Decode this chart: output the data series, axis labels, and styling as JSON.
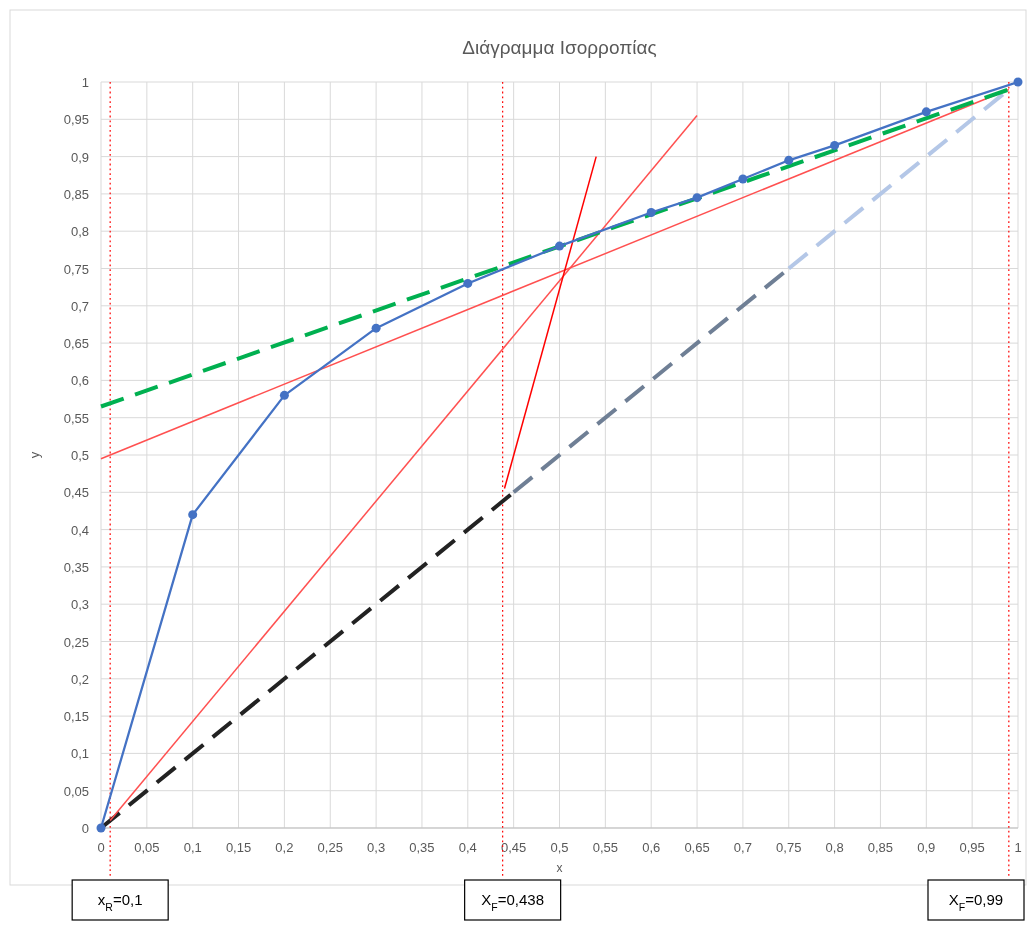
{
  "chart_data": {
    "type": "line",
    "title": "Διάγραμμα Ισορροπίας",
    "xlabel": "x",
    "ylabel": "y",
    "xlim": [
      0,
      1
    ],
    "ylim": [
      0,
      1
    ],
    "xticks": [
      0,
      {
        "value": 0.05,
        "label": "0,05"
      },
      {
        "value": 0.1,
        "label": "0,1"
      },
      {
        "value": 0.15,
        "label": "0,15"
      },
      {
        "value": 0.2,
        "label": "0,2"
      },
      {
        "value": 0.25,
        "label": "0,25"
      },
      {
        "value": 0.3,
        "label": "0,3"
      },
      {
        "value": 0.35,
        "label": "0,35"
      },
      {
        "value": 0.4,
        "label": "0,4"
      },
      {
        "value": 0.45,
        "label": "0,45"
      },
      {
        "value": 0.5,
        "label": "0,5"
      },
      {
        "value": 0.55,
        "label": "0,55"
      },
      {
        "value": 0.6,
        "label": "0,6"
      },
      {
        "value": 0.65,
        "label": "0,65"
      },
      {
        "value": 0.7,
        "label": "0,7"
      },
      {
        "value": 0.75,
        "label": "0,75"
      },
      {
        "value": 0.8,
        "label": "0,8"
      },
      {
        "value": 0.85,
        "label": "0,85"
      },
      {
        "value": 0.9,
        "label": "0,9"
      },
      {
        "value": 0.95,
        "label": "0,95"
      },
      1
    ],
    "yticks": [
      0,
      {
        "value": 0.05,
        "label": "0,05"
      },
      {
        "value": 0.1,
        "label": "0,1"
      },
      {
        "value": 0.15,
        "label": "0,15"
      },
      {
        "value": 0.2,
        "label": "0,2"
      },
      {
        "value": 0.25,
        "label": "0,25"
      },
      {
        "value": 0.3,
        "label": "0,3"
      },
      {
        "value": 0.35,
        "label": "0,35"
      },
      {
        "value": 0.4,
        "label": "0,4"
      },
      {
        "value": 0.45,
        "label": "0,45"
      },
      {
        "value": 0.5,
        "label": "0,5"
      },
      {
        "value": 0.55,
        "label": "0,55"
      },
      {
        "value": 0.6,
        "label": "0,6"
      },
      {
        "value": 0.65,
        "label": "0,65"
      },
      {
        "value": 0.7,
        "label": "0,7"
      },
      {
        "value": 0.75,
        "label": "0,75"
      },
      {
        "value": 0.8,
        "label": "0,8"
      },
      {
        "value": 0.85,
        "label": "0,85"
      },
      {
        "value": 0.9,
        "label": "0,9"
      },
      {
        "value": 0.95,
        "label": "0,95"
      },
      1
    ],
    "grid": true,
    "annotations": [
      "x$_{R}$=0,1",
      "X$_{F}$=0,438",
      "X$_{F}$=0,99"
    ],
    "series": [
      {
        "color": "#222222",
        "x": [
          0,
          0.45
        ],
        "values": [
          0,
          0.45
        ],
        "line_style": "dashed",
        "marker": "none"
      },
      {
        "color": "#6f7f95",
        "x": [
          0.45,
          0.75
        ],
        "values": [
          0.45,
          0.75
        ],
        "line_style": "dashed",
        "marker": "none"
      },
      {
        "color": "#b4c7e7",
        "x": [
          0.75,
          0.99
        ],
        "values": [
          0.75,
          0.99
        ],
        "line_style": "dashed",
        "marker": "none"
      },
      {
        "color": "#ff5050",
        "x": [
          0,
          0.99
        ],
        "values": [
          0.495,
          0.99
        ],
        "line_style": "solid",
        "marker": "none"
      },
      {
        "color": "#ff5050",
        "x": [
          0.01,
          0.65
        ],
        "values": [
          0.01,
          0.955
        ],
        "line_style": "solid",
        "marker": "none"
      },
      {
        "color": "#00b050",
        "x": [
          0,
          0.99
        ],
        "values": [
          0.565,
          0.99
        ],
        "line_style": "dashed",
        "marker": "none"
      },
      {
        "color": "#ff0000",
        "x": [
          0.44,
          0.54
        ],
        "values": [
          0.455,
          0.9
        ],
        "line_style": "solid",
        "marker": "none"
      },
      {
        "color": "#4472c4",
        "x": [
          0,
          0.1,
          0.2,
          0.3,
          0.4,
          0.5,
          0.6,
          0.65,
          0.7,
          0.75,
          0.8,
          0.9,
          1
        ],
        "values": [
          0,
          0.42,
          0.58,
          0.67,
          0.73,
          0.78,
          0.825,
          0.845,
          0.87,
          0.895,
          0.915,
          0.96,
          1
        ],
        "line_style": "solid",
        "marker": "circle"
      }
    ],
    "ref_lines": [
      {
        "axis": "x",
        "value": 0.01,
        "color": "#ff0000",
        "line_style": "dotted"
      },
      {
        "axis": "x",
        "value": 0.438,
        "color": "#ff0000",
        "line_style": "dotted"
      },
      {
        "axis": "x",
        "value": 0.99,
        "color": "#ff0000",
        "line_style": "dotted"
      }
    ]
  }
}
